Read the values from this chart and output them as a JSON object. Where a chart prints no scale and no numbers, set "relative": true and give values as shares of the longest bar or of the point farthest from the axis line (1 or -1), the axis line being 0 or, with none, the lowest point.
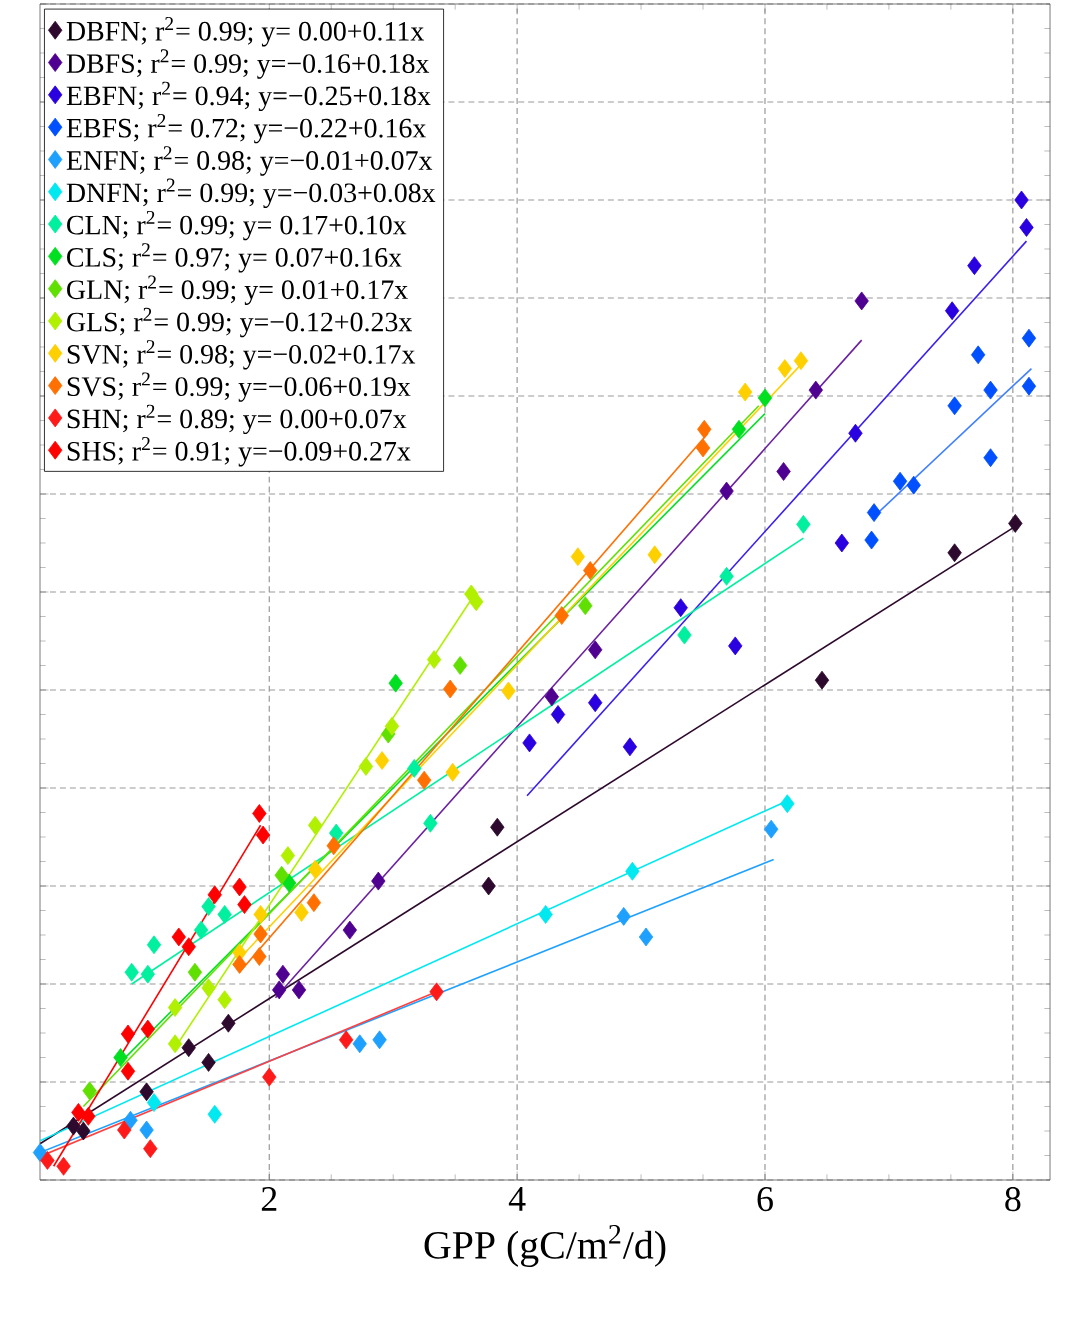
{
  "chart_data": {
    "type": "scatter",
    "xlabel": "GPP (gC/m$^{2}$/d)",
    "xlim": [
      0.15,
      8.3
    ],
    "xticks": [
      2,
      4,
      6,
      8
    ],
    "relative": true,
    "grid": true,
    "legend": "top left",
    "marker": "diamond",
    "line_style": "solid",
    "series": [
      {
        "name": "DBFN; r$^{2}$= 0.99; y= 0.00+0.11x",
        "color": "#2d0a2d",
        "x": [
          0.42,
          0.5,
          1.01,
          1.35,
          1.51,
          1.67,
          3.77,
          3.84,
          6.46,
          7.53,
          8.02
        ],
        "values": [
          0.055,
          0.05,
          0.09,
          0.135,
          0.12,
          0.16,
          0.3,
          0.36,
          0.51,
          0.64,
          0.67
        ]
      },
      {
        "name": "DBFS; r$^{2}$= 0.99; y=−0.16+0.18x",
        "color": "#500090",
        "x": [
          2.08,
          2.24,
          2.11,
          2.65,
          2.88,
          4.28,
          4.63,
          5.69,
          6.15,
          6.41,
          6.78
        ],
        "values": [
          0.194,
          0.194,
          0.21,
          0.255,
          0.305,
          0.493,
          0.541,
          0.703,
          0.723,
          0.806,
          0.897
        ]
      },
      {
        "name": "EBFN; r$^{2}$= 0.94; y=−0.25+0.18x",
        "color": "#2a00e0",
        "x": [
          4.1,
          4.33,
          4.63,
          4.91,
          5.32,
          5.76,
          6.62,
          6.73,
          7.51,
          7.69,
          8.07,
          8.11
        ],
        "values": [
          0.446,
          0.475,
          0.487,
          0.442,
          0.584,
          0.545,
          0.65,
          0.762,
          0.887,
          0.933,
          1,
          0.972
        ]
      },
      {
        "name": "EBFS; r$^{2}$= 0.72; y=−0.22+0.16x",
        "color": "#0050ff",
        "x": [
          6.86,
          6.88,
          7.09,
          7.2,
          7.53,
          7.72,
          7.82,
          7.82,
          8.13,
          8.13
        ],
        "values": [
          0.653,
          0.681,
          0.713,
          0.709,
          0.79,
          0.842,
          0.737,
          0.806,
          0.859,
          0.81
        ]
      },
      {
        "name": "ENFN; r$^{2}$= 0.98; y=−0.01+0.07x",
        "color": "#1ea0ff",
        "x": [
          0.15,
          0.88,
          1.01,
          2.73,
          2.89,
          4.86,
          5.04,
          6.05
        ],
        "values": [
          0.028,
          0.061,
          0.051,
          0.139,
          0.143,
          0.269,
          0.248,
          0.358
        ]
      },
      {
        "name": "DNFN; r$^{2}$= 0.99; y=−0.03+0.08x",
        "color": "#00e8f0",
        "x": [
          1.07,
          1.56,
          4.23,
          4.93,
          6.18
        ],
        "values": [
          0.079,
          0.067,
          0.271,
          0.315,
          0.384
        ]
      },
      {
        "name": "CLN; r$^{2}$= 0.99; y= 0.17+0.10x",
        "color": "#00f0a0",
        "x": [
          0.89,
          1.02,
          1.07,
          1.45,
          1.51,
          1.64,
          2.54,
          3.17,
          3.3,
          5.35,
          5.69,
          6.31
        ],
        "values": [
          0.212,
          0.21,
          0.24,
          0.255,
          0.279,
          0.271,
          0.354,
          0.42,
          0.364,
          0.556,
          0.616,
          0.669
        ]
      },
      {
        "name": "CLS; r$^{2}$= 0.97; y= 0.07+0.16x",
        "color": "#00e020",
        "x": [
          0.8,
          2.16,
          3.02,
          5.79,
          6.0
        ],
        "values": [
          0.125,
          0.303,
          0.507,
          0.766,
          0.798
        ]
      },
      {
        "name": "GLN; r$^{2}$= 0.99; y= 0.01+0.17x",
        "color": "#60e000",
        "x": [
          0.55,
          1.4,
          2.1,
          2.96,
          3.54,
          4.55
        ],
        "values": [
          0.091,
          0.212,
          0.311,
          0.455,
          0.525,
          0.586
        ]
      },
      {
        "name": "GLS; r$^{2}$= 0.99; y=−0.12+0.23x",
        "color": "#b0f000",
        "x": [
          1.24,
          1.24,
          1.51,
          1.64,
          2.15,
          2.37,
          2.78,
          2.99,
          3.33,
          3.63,
          3.67
        ],
        "values": [
          0.139,
          0.176,
          0.196,
          0.184,
          0.331,
          0.362,
          0.422,
          0.463,
          0.531,
          0.598,
          0.59
        ]
      },
      {
        "name": "SVN; r$^{2}$= 0.98; y=−0.02+0.17x",
        "color": "#ffd000",
        "x": [
          1.76,
          1.93,
          2.26,
          2.37,
          2.91,
          3.48,
          3.93,
          4.49,
          5.11,
          5.84,
          6.16,
          6.29
        ],
        "values": [
          0.232,
          0.271,
          0.273,
          0.317,
          0.428,
          0.416,
          0.499,
          0.636,
          0.638,
          0.804,
          0.828,
          0.836
        ]
      },
      {
        "name": "SVS; r$^{2}$= 0.99; y=−0.06+0.19x",
        "color": "#ff7000",
        "x": [
          1.76,
          1.92,
          1.93,
          2.36,
          2.52,
          3.25,
          3.46,
          4.36,
          4.59,
          5.5,
          5.51
        ],
        "values": [
          0.22,
          0.228,
          0.251,
          0.283,
          0.341,
          0.408,
          0.501,
          0.576,
          0.622,
          0.747,
          0.766
        ]
      },
      {
        "name": "SHN; r$^{2}$= 0.89; y= 0.00+0.07x",
        "color": "#ff1a1a",
        "x": [
          0.21,
          0.34,
          0.83,
          1.04,
          2.0,
          2.62,
          3.35
        ],
        "values": [
          0.02,
          0.014,
          0.051,
          0.032,
          0.105,
          0.143,
          0.192
        ]
      },
      {
        "name": "SHS; r$^{2}$= 0.91; y=−0.09+0.27x",
        "color": "#ff0000",
        "x": [
          0.46,
          0.54,
          0.86,
          0.86,
          1.02,
          1.27,
          1.35,
          1.56,
          1.76,
          1.8,
          1.92,
          1.95
        ],
        "values": [
          0.069,
          0.065,
          0.111,
          0.149,
          0.154,
          0.248,
          0.238,
          0.291,
          0.299,
          0.281,
          0.374,
          0.352
        ]
      },
      {
        "type": "line",
        "marker": "none",
        "color": "#2d0a2d",
        "x": [
          0.15,
          8.02
        ],
        "values": [
          0.037,
          0.667
        ]
      },
      {
        "type": "line",
        "marker": "none",
        "color": "#6a20a0",
        "x": [
          2.05,
          6.78
        ],
        "values": [
          0.186,
          0.857
        ]
      },
      {
        "type": "line",
        "marker": "none",
        "color": "#3a20f0",
        "x": [
          4.08,
          8.11
        ],
        "values": [
          0.392,
          0.958
        ]
      },
      {
        "type": "line",
        "marker": "none",
        "color": "#4080ff",
        "x": [
          6.88,
          8.15
        ],
        "values": [
          0.677,
          0.828
        ]
      },
      {
        "type": "line",
        "marker": "none",
        "color": "#1ea0ff",
        "x": [
          0.15,
          6.07
        ],
        "values": [
          0.028,
          0.327
        ]
      },
      {
        "type": "line",
        "marker": "none",
        "color": "#00e8f0",
        "x": [
          0.15,
          6.2
        ],
        "values": [
          0.04,
          0.388
        ]
      },
      {
        "type": "line",
        "marker": "none",
        "color": "#00f0a0",
        "x": [
          0.89,
          6.31
        ],
        "values": [
          0.2,
          0.655
        ]
      },
      {
        "type": "line",
        "marker": "none",
        "color": "#00e020",
        "x": [
          0.8,
          6.0
        ],
        "values": [
          0.12,
          0.782
        ]
      },
      {
        "type": "line",
        "marker": "none",
        "color": "#60e000",
        "x": [
          0.5,
          5.95
        ],
        "values": [
          0.075,
          0.79
        ]
      },
      {
        "type": "line",
        "marker": "none",
        "color": "#b0f000",
        "x": [
          1.24,
          3.67
        ],
        "values": [
          0.135,
          0.6
        ]
      },
      {
        "type": "line",
        "marker": "none",
        "color": "#ffd000",
        "x": [
          1.76,
          6.29
        ],
        "values": [
          0.226,
          0.832
        ]
      },
      {
        "type": "line",
        "marker": "none",
        "color": "#ff7000",
        "x": [
          1.76,
          5.54
        ],
        "values": [
          0.212,
          0.762
        ]
      },
      {
        "type": "line",
        "marker": "none",
        "color": "#ff4040",
        "x": [
          0.15,
          3.35
        ],
        "values": [
          0.024,
          0.192
        ]
      },
      {
        "type": "line",
        "marker": "none",
        "color": "#ff0000",
        "x": [
          0.26,
          1.93
        ],
        "values": [
          0.014,
          0.362
        ]
      }
    ]
  }
}
